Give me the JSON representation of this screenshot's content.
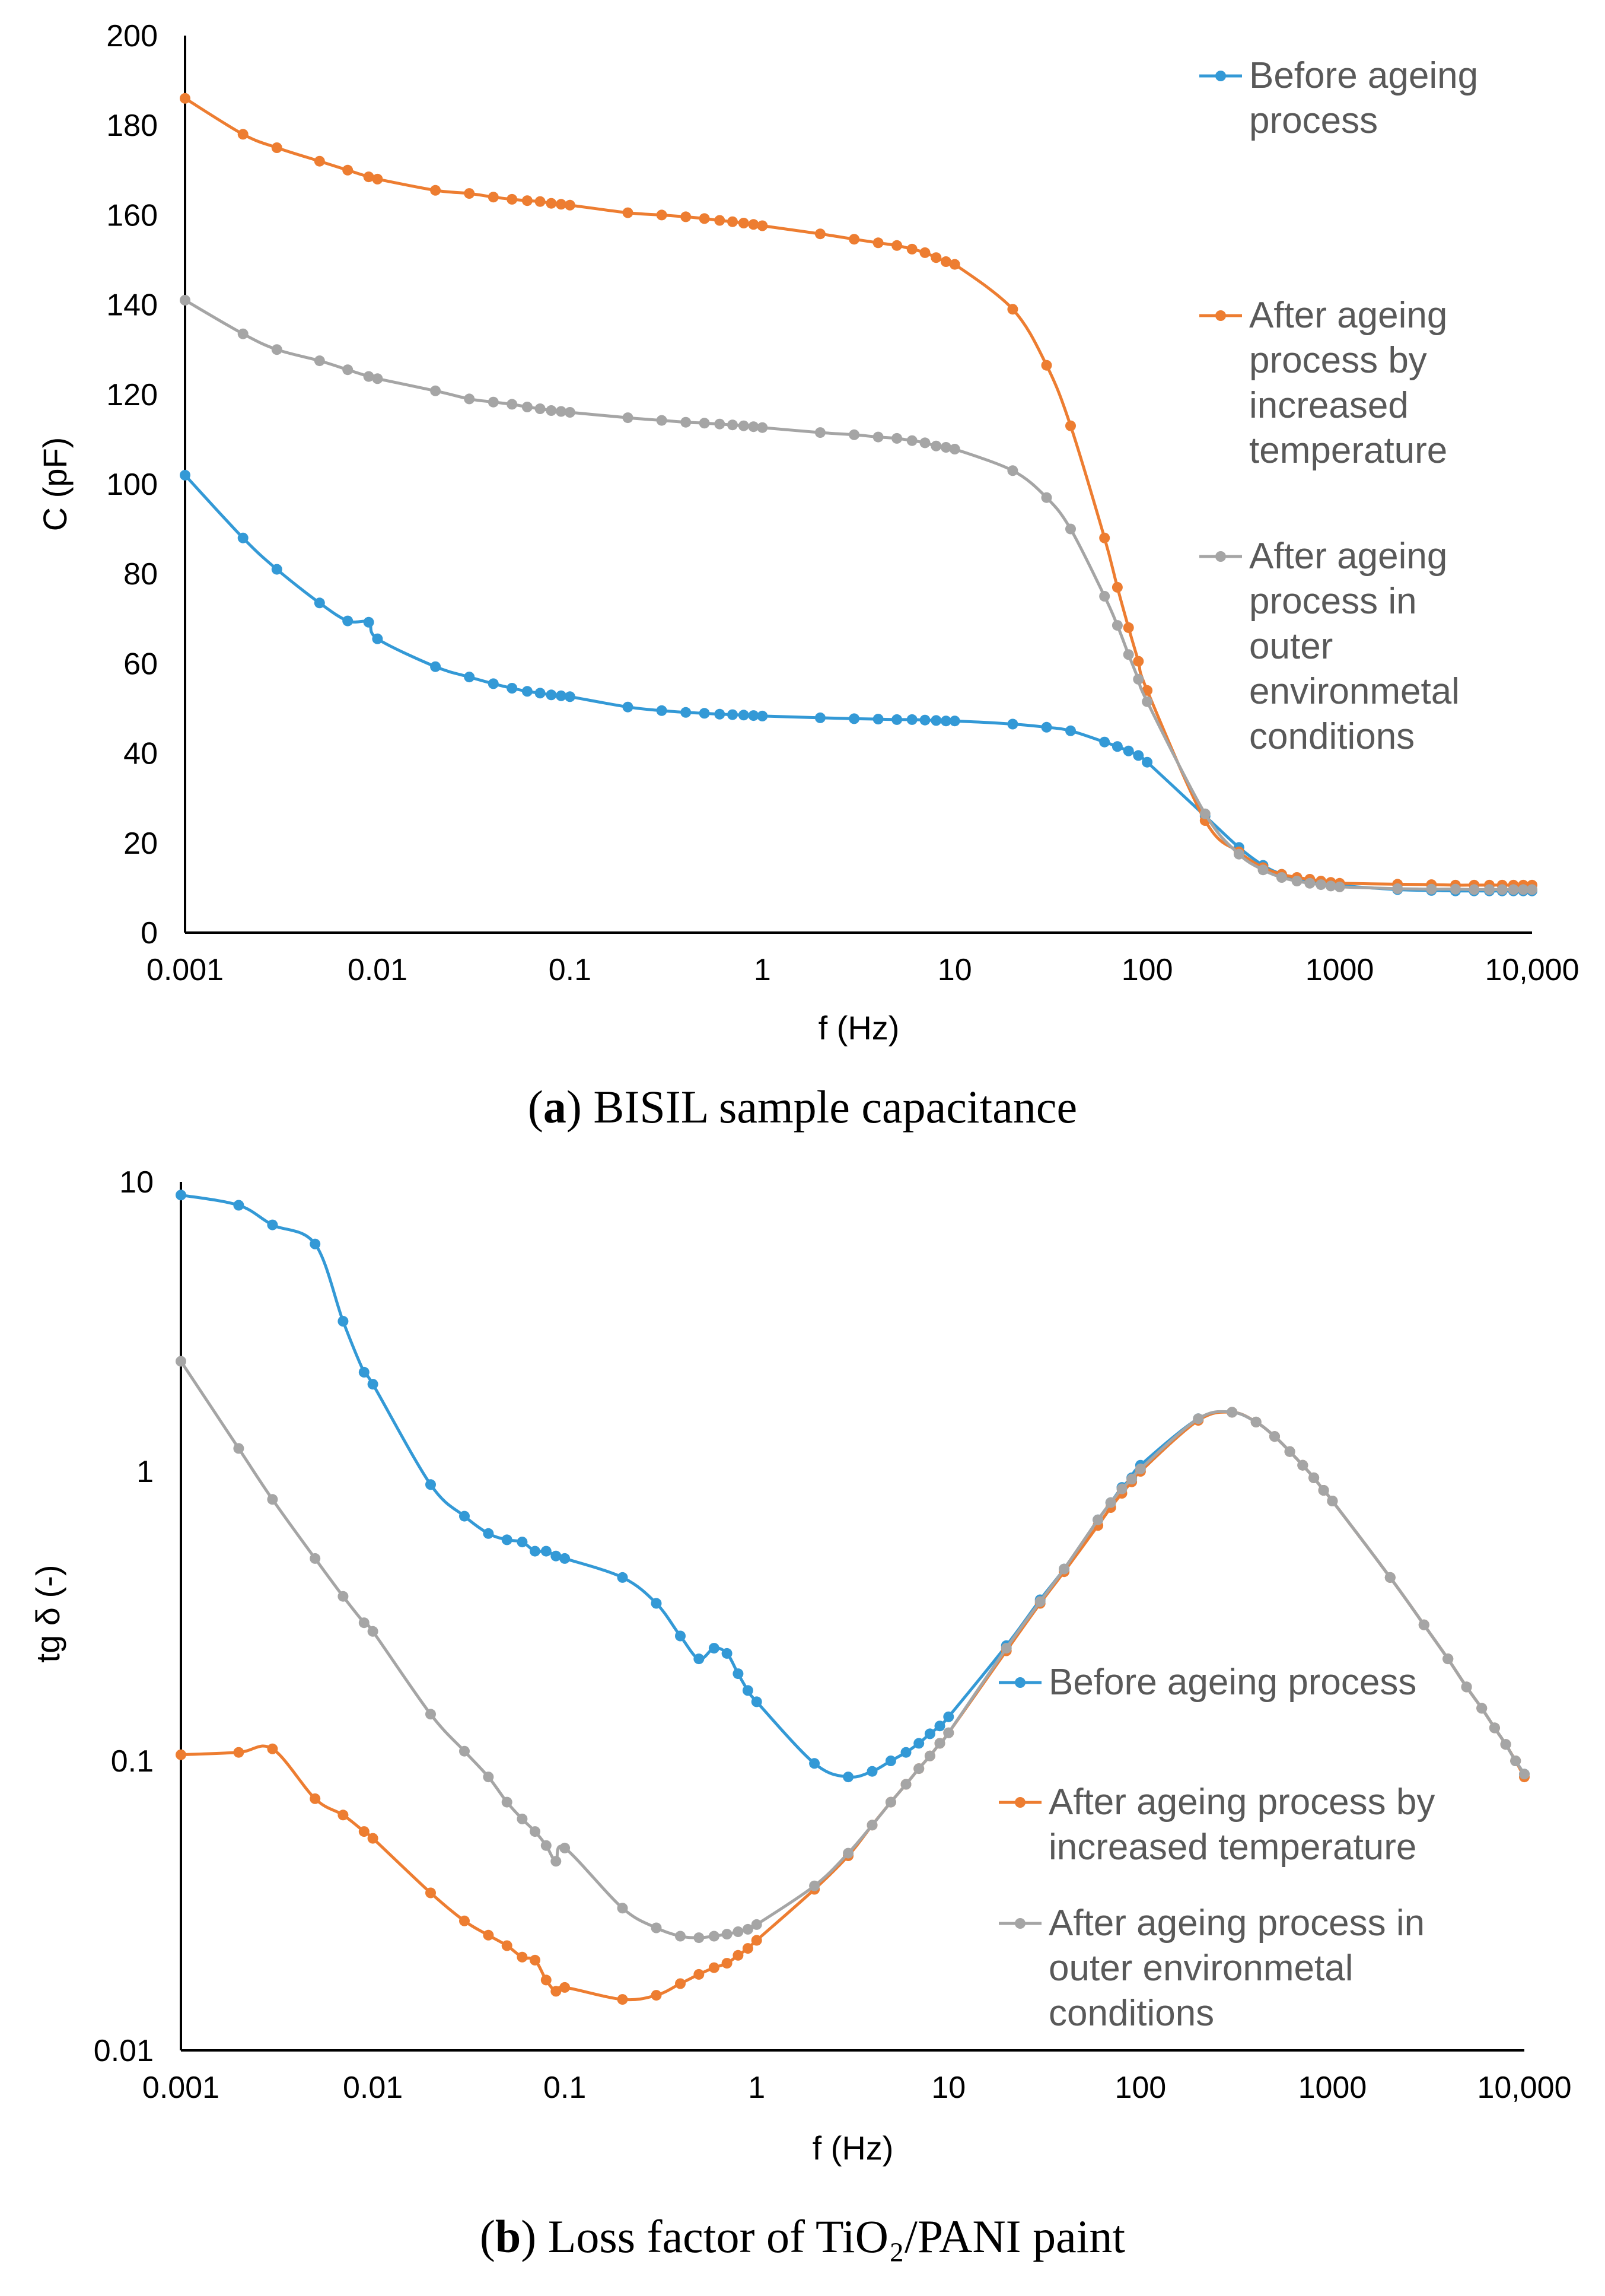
{
  "colors": {
    "blue": "#3399d6",
    "orange": "#ed7d31",
    "gray": "#a5a5a5"
  },
  "chart_data": [
    {
      "type": "line",
      "caption_letter": "a",
      "caption_text": " BISIL sample capacitance",
      "xlabel": "f (Hz)",
      "ylabel": "C (pF)",
      "x_scale": "log",
      "y_scale": "linear",
      "xlim": [
        0.001,
        10000
      ],
      "ylim": [
        0,
        200
      ],
      "xticks": [
        0.001,
        0.01,
        0.1,
        1,
        10,
        100,
        1000,
        10000
      ],
      "xtick_labels": [
        "0.001",
        "0.01",
        "0.1",
        "1",
        "10",
        "100",
        "1000",
        "10,000"
      ],
      "yticks": [
        0,
        20,
        40,
        60,
        80,
        100,
        120,
        140,
        160,
        180,
        200
      ],
      "ytick_labels": [
        "0",
        "20",
        "40",
        "60",
        "80",
        "100",
        "120",
        "140",
        "160",
        "180",
        "200"
      ],
      "legend_position": "right",
      "legend": [
        {
          "lines": [
            "Before ageing",
            "process"
          ],
          "color": "blue"
        },
        {
          "lines": [
            "After ageing",
            "process by",
            "increased",
            "temperature"
          ],
          "color": "orange"
        },
        {
          "lines": [
            "After ageing",
            "process in",
            "outer",
            "environmetal",
            "conditions"
          ],
          "color": "gray"
        }
      ],
      "series": [
        {
          "color": "blue",
          "x": [
            0.001,
            0.002,
            0.003,
            0.005,
            0.007,
            0.009,
            0.01,
            0.02,
            0.03,
            0.04,
            0.05,
            0.06,
            0.07,
            0.08,
            0.09,
            0.1,
            0.2,
            0.3,
            0.4,
            0.5,
            0.6,
            0.7,
            0.8,
            0.9,
            1,
            2,
            3,
            4,
            5,
            6,
            7,
            8,
            9,
            10,
            20,
            30,
            40,
            60,
            70,
            80,
            90,
            100,
            200,
            300,
            400,
            500,
            600,
            700,
            800,
            900,
            1000,
            2000,
            3000,
            4000,
            5000,
            6000,
            7000,
            8000,
            9000,
            10000
          ],
          "y": [
            102,
            88,
            81,
            73.5,
            69.5,
            69.2,
            65.5,
            59.3,
            57,
            55.5,
            54.5,
            53.8,
            53.4,
            53,
            52.8,
            52.6,
            50.3,
            49.5,
            49.1,
            48.9,
            48.7,
            48.6,
            48.5,
            48.4,
            48.3,
            47.9,
            47.7,
            47.6,
            47.5,
            47.5,
            47.4,
            47.3,
            47.2,
            47.2,
            46.5,
            45.8,
            45,
            42.5,
            41.5,
            40.5,
            39.5,
            38,
            26,
            19,
            15,
            13,
            12,
            11.5,
            11,
            10.8,
            10.5,
            9.6,
            9.4,
            9.3,
            9.3,
            9.3,
            9.3,
            9.3,
            9.3,
            9.3
          ]
        },
        {
          "color": "orange",
          "x": [
            0.001,
            0.002,
            0.003,
            0.005,
            0.007,
            0.009,
            0.01,
            0.02,
            0.03,
            0.04,
            0.05,
            0.06,
            0.07,
            0.08,
            0.09,
            0.1,
            0.2,
            0.3,
            0.4,
            0.5,
            0.6,
            0.7,
            0.8,
            0.9,
            1,
            2,
            3,
            4,
            5,
            6,
            7,
            8,
            9,
            10,
            20,
            30,
            40,
            60,
            70,
            80,
            90,
            100,
            200,
            300,
            400,
            500,
            600,
            700,
            800,
            900,
            1000,
            2000,
            3000,
            4000,
            5000,
            6000,
            7000,
            8000,
            9000,
            10000
          ],
          "y": [
            186,
            178,
            175,
            172,
            170,
            168.5,
            168,
            165.5,
            164.8,
            164,
            163.5,
            163.2,
            163,
            162.6,
            162.4,
            162.2,
            160.5,
            160,
            159.6,
            159.2,
            158.8,
            158.5,
            158.2,
            157.9,
            157.6,
            155.8,
            154.6,
            153.8,
            153.2,
            152.4,
            151.6,
            150.5,
            149.6,
            149,
            139,
            126.5,
            113,
            88,
            77,
            68,
            60.5,
            54,
            25,
            18,
            14.5,
            13,
            12.3,
            11.9,
            11.5,
            11.2,
            11,
            10.8,
            10.7,
            10.6,
            10.6,
            10.6,
            10.6,
            10.6,
            10.6,
            10.6
          ]
        },
        {
          "color": "gray",
          "x": [
            0.001,
            0.002,
            0.003,
            0.005,
            0.007,
            0.009,
            0.01,
            0.02,
            0.03,
            0.04,
            0.05,
            0.06,
            0.07,
            0.08,
            0.09,
            0.1,
            0.2,
            0.3,
            0.4,
            0.5,
            0.6,
            0.7,
            0.8,
            0.9,
            1,
            2,
            3,
            4,
            5,
            6,
            7,
            8,
            9,
            10,
            20,
            30,
            40,
            60,
            70,
            80,
            90,
            100,
            200,
            300,
            400,
            500,
            600,
            700,
            800,
            900,
            1000,
            2000,
            3000,
            4000,
            5000,
            6000,
            7000,
            8000,
            9000,
            10000
          ],
          "y": [
            141,
            133.5,
            130,
            127.5,
            125.5,
            124,
            123.5,
            120.8,
            119,
            118.3,
            117.8,
            117.2,
            116.8,
            116.4,
            116.2,
            116,
            114.8,
            114.2,
            113.8,
            113.6,
            113.4,
            113.2,
            113,
            112.8,
            112.6,
            111.5,
            111,
            110.5,
            110.2,
            109.7,
            109.2,
            108.5,
            108.2,
            107.8,
            103,
            97,
            90,
            75,
            68.5,
            62,
            56.5,
            51.5,
            26.5,
            17.5,
            14,
            12.3,
            11.5,
            11,
            10.7,
            10.4,
            10.2,
            9.8,
            9.7,
            9.7,
            9.6,
            9.6,
            9.6,
            9.6,
            9.6,
            9.6
          ]
        }
      ]
    },
    {
      "type": "line",
      "caption_letter": "b",
      "caption_text": " Loss factor of TiO₂/PANI paint",
      "xlabel": "f (Hz)",
      "ylabel": "tg δ (-)",
      "x_scale": "log",
      "y_scale": "log",
      "xlim": [
        0.001,
        10000
      ],
      "ylim": [
        0.01,
        10
      ],
      "xticks": [
        0.001,
        0.01,
        0.1,
        1,
        10,
        100,
        1000,
        10000
      ],
      "xtick_labels": [
        "0.001",
        "0.01",
        "0.1",
        "1",
        "10",
        "100",
        "1000",
        "10,000"
      ],
      "yticks": [
        0.01,
        0.1,
        1,
        10
      ],
      "ytick_labels": [
        "0.01",
        "0.1",
        "1",
        "10"
      ],
      "legend_position": "right",
      "legend": [
        {
          "lines": [
            "Before ageing process"
          ],
          "color": "blue"
        },
        {
          "lines": [
            "After ageing process by",
            "increased temperature"
          ],
          "color": "orange"
        },
        {
          "lines": [
            "After ageing process in",
            "outer environmetal",
            "conditions"
          ],
          "color": "gray"
        }
      ],
      "series": [
        {
          "color": "blue",
          "x": [
            0.001,
            0.002,
            0.003,
            0.005,
            0.007,
            0.009,
            0.01,
            0.02,
            0.03,
            0.04,
            0.05,
            0.06,
            0.07,
            0.08,
            0.09,
            0.1,
            0.2,
            0.3,
            0.4,
            0.5,
            0.6,
            0.7,
            0.8,
            0.9,
            1,
            2,
            3,
            4,
            5,
            6,
            7,
            8,
            9,
            10,
            20,
            30,
            40,
            60,
            70,
            80,
            90,
            100,
            200,
            300,
            400,
            500,
            600,
            700,
            800,
            900,
            1000,
            2000,
            3000,
            4000,
            5000,
            6000,
            7000,
            8000,
            9000,
            10000
          ],
          "y": [
            9,
            8.3,
            7.1,
            6.1,
            3.3,
            2.2,
            2.0,
            0.9,
            0.7,
            0.61,
            0.58,
            0.57,
            0.53,
            0.53,
            0.51,
            0.5,
            0.43,
            0.35,
            0.27,
            0.225,
            0.245,
            0.235,
            0.2,
            0.175,
            0.16,
            0.098,
            0.088,
            0.092,
            0.1,
            0.107,
            0.115,
            0.124,
            0.132,
            0.142,
            0.25,
            0.36,
            0.46,
            0.68,
            0.78,
            0.88,
            0.95,
            1.05,
            1.52,
            1.6,
            1.48,
            1.32,
            1.17,
            1.05,
            0.95,
            0.86,
            0.79,
            0.43,
            0.295,
            0.225,
            0.18,
            0.152,
            0.13,
            0.114,
            0.1,
            0.09
          ]
        },
        {
          "color": "orange",
          "x": [
            0.001,
            0.002,
            0.003,
            0.005,
            0.007,
            0.009,
            0.01,
            0.02,
            0.03,
            0.04,
            0.05,
            0.06,
            0.07,
            0.08,
            0.09,
            0.1,
            0.2,
            0.3,
            0.4,
            0.5,
            0.6,
            0.7,
            0.8,
            0.9,
            1,
            2,
            3,
            4,
            5,
            6,
            7,
            8,
            9,
            10,
            20,
            30,
            40,
            60,
            70,
            80,
            90,
            100,
            200,
            300,
            400,
            500,
            600,
            700,
            800,
            900,
            1000,
            2000,
            3000,
            4000,
            5000,
            6000,
            7000,
            8000,
            9000,
            10000
          ],
          "y": [
            0.105,
            0.107,
            0.11,
            0.074,
            0.065,
            0.057,
            0.054,
            0.035,
            0.028,
            0.025,
            0.023,
            0.021,
            0.0205,
            0.0175,
            0.016,
            0.0165,
            0.015,
            0.0155,
            0.017,
            0.0183,
            0.0193,
            0.02,
            0.0213,
            0.0225,
            0.024,
            0.036,
            0.047,
            0.06,
            0.072,
            0.083,
            0.094,
            0.104,
            0.115,
            0.125,
            0.24,
            0.35,
            0.45,
            0.65,
            0.75,
            0.84,
            0.92,
            1.0,
            1.5,
            1.6,
            1.48,
            1.32,
            1.17,
            1.05,
            0.95,
            0.86,
            0.79,
            0.43,
            0.295,
            0.225,
            0.18,
            0.152,
            0.13,
            0.114,
            0.1,
            0.088
          ]
        },
        {
          "color": "gray",
          "x": [
            0.001,
            0.002,
            0.003,
            0.005,
            0.007,
            0.009,
            0.01,
            0.02,
            0.03,
            0.04,
            0.05,
            0.06,
            0.07,
            0.08,
            0.09,
            0.1,
            0.2,
            0.3,
            0.4,
            0.5,
            0.6,
            0.7,
            0.8,
            0.9,
            1,
            2,
            3,
            4,
            5,
            6,
            7,
            8,
            9,
            10,
            20,
            30,
            40,
            60,
            70,
            80,
            90,
            100,
            200,
            300,
            400,
            500,
            600,
            700,
            800,
            900,
            1000,
            2000,
            3000,
            4000,
            5000,
            6000,
            7000,
            8000,
            9000,
            10000
          ],
          "y": [
            2.4,
            1.2,
            0.8,
            0.5,
            0.37,
            0.3,
            0.28,
            0.145,
            0.108,
            0.088,
            0.072,
            0.063,
            0.057,
            0.051,
            0.045,
            0.05,
            0.031,
            0.0265,
            0.0248,
            0.0245,
            0.0248,
            0.0252,
            0.0257,
            0.0262,
            0.0272,
            0.037,
            0.048,
            0.06,
            0.072,
            0.083,
            0.094,
            0.104,
            0.115,
            0.125,
            0.245,
            0.355,
            0.46,
            0.68,
            0.78,
            0.87,
            0.94,
            1.02,
            1.52,
            1.6,
            1.48,
            1.32,
            1.17,
            1.05,
            0.95,
            0.86,
            0.79,
            0.43,
            0.295,
            0.225,
            0.18,
            0.152,
            0.13,
            0.114,
            0.1,
            0.09
          ]
        }
      ]
    }
  ]
}
